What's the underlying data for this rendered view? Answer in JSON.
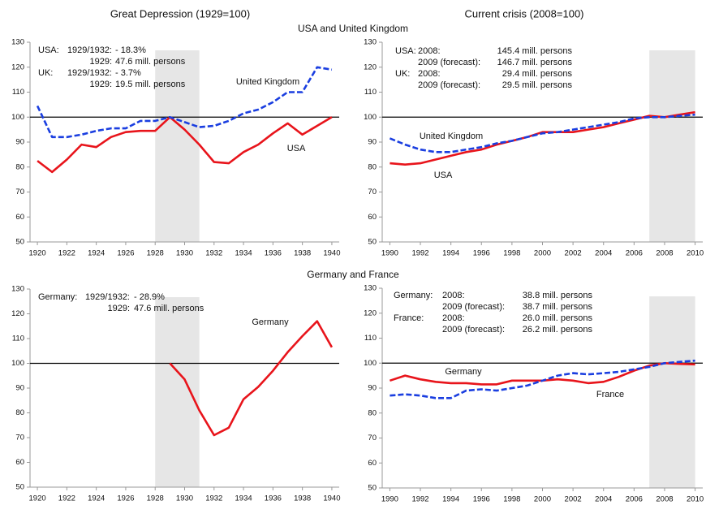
{
  "headings": {
    "left": "Great Depression (1929=100)",
    "right": "Current crisis (2008=100)",
    "sections": [
      "USA and United Kingdom",
      "Germany and France"
    ]
  },
  "chart_data": [
    {
      "type": "line",
      "x": [
        1920,
        1921,
        1922,
        1923,
        1924,
        1925,
        1926,
        1927,
        1928,
        1929,
        1930,
        1931,
        1932,
        1933,
        1934,
        1935,
        1936,
        1937,
        1938,
        1939,
        1940
      ],
      "series": [
        {
          "name": "USA",
          "color": "#e8141b",
          "dashed": false,
          "values": [
            82.5,
            78,
            83,
            89,
            88,
            92,
            94,
            94.5,
            94.5,
            100,
            95,
            89,
            82,
            81.5,
            86,
            89,
            93.5,
            97.5,
            93,
            96.5,
            100
          ]
        },
        {
          "name": "United Kingdom",
          "color": "#1a3ee0",
          "dashed": true,
          "values": [
            104.5,
            92,
            92,
            93,
            94.5,
            95.5,
            95.5,
            98.5,
            98.5,
            100,
            98,
            96,
            96.5,
            98.5,
            101.5,
            103,
            106,
            110,
            110,
            120,
            119
          ]
        }
      ],
      "xlim": [
        1919.5,
        1940.5
      ],
      "xticks": [
        1920,
        1922,
        1924,
        1926,
        1928,
        1930,
        1932,
        1934,
        1936,
        1938,
        1940
      ],
      "ylim": [
        50,
        130
      ],
      "yticks": [
        50,
        60,
        70,
        80,
        90,
        100,
        110,
        120,
        130
      ],
      "highlight_x": [
        1928,
        1931
      ],
      "reference_y": 100,
      "annotations": [
        {
          "country": "USA:",
          "period": "1929/1932:",
          "value": "- 18.3%"
        },
        {
          "period": "1929:",
          "value": "47.6 mill. persons"
        },
        {
          "country": "UK:",
          "period": "1929/1932:",
          "value": "- 3.7%"
        },
        {
          "period": "1929:",
          "value": "19.5 mill. persons"
        }
      ]
    },
    {
      "type": "line",
      "x": [
        1990,
        1991,
        1992,
        1993,
        1994,
        1995,
        1996,
        1997,
        1998,
        1999,
        2000,
        2001,
        2002,
        2003,
        2004,
        2005,
        2006,
        2007,
        2008,
        2009,
        2010
      ],
      "series": [
        {
          "name": "USA",
          "color": "#e8141b",
          "dashed": false,
          "values": [
            81.5,
            81,
            81.5,
            83,
            84.5,
            86,
            87,
            89,
            90.5,
            92,
            94,
            94,
            94,
            95,
            96,
            97.5,
            99,
            100.5,
            100,
            101,
            102
          ]
        },
        {
          "name": "United Kingdom",
          "color": "#1a3ee0",
          "dashed": true,
          "values": [
            91.5,
            89,
            87,
            86,
            86,
            87,
            88,
            89.5,
            90.5,
            92,
            93.5,
            94,
            95,
            96,
            97,
            98,
            99.5,
            100,
            100,
            100.5,
            101
          ]
        }
      ],
      "xlim": [
        1989.5,
        2010.5
      ],
      "xticks": [
        1990,
        1992,
        1994,
        1996,
        1998,
        2000,
        2002,
        2004,
        2006,
        2008,
        2010
      ],
      "ylim": [
        50,
        130
      ],
      "yticks": [
        50,
        60,
        70,
        80,
        90,
        100,
        110,
        120,
        130
      ],
      "highlight_x": [
        2007,
        2010
      ],
      "reference_y": 100,
      "annotations": [
        {
          "country": "USA:",
          "period": "2008:",
          "value": "145.4 mill. persons"
        },
        {
          "period": "2009 (forecast):",
          "value": "146.7 mill. persons"
        },
        {
          "country": "UK:",
          "period": "2008:",
          "value": "29.4 mill. persons"
        },
        {
          "period": "2009 (forecast):",
          "value": "29.5 mill. persons"
        }
      ]
    },
    {
      "type": "line",
      "x": [
        1929,
        1930,
        1931,
        1932,
        1933,
        1934,
        1935,
        1936,
        1937,
        1938,
        1939,
        1940
      ],
      "series": [
        {
          "name": "Germany",
          "color": "#e8141b",
          "dashed": false,
          "values": [
            100,
            93.5,
            81,
            71,
            74,
            85.5,
            90.5,
            97,
            104.5,
            111,
            117,
            106.5
          ]
        }
      ],
      "xlim": [
        1919.5,
        1940.5
      ],
      "xticks": [
        1920,
        1922,
        1924,
        1926,
        1928,
        1930,
        1932,
        1934,
        1936,
        1938,
        1940
      ],
      "ylim": [
        50,
        130
      ],
      "yticks": [
        50,
        60,
        70,
        80,
        90,
        100,
        110,
        120,
        130
      ],
      "highlight_x": [
        1928,
        1931
      ],
      "reference_y": 100,
      "annotations": [
        {
          "country": "Germany:",
          "period": "1929/1932:",
          "value": "- 28.9%"
        },
        {
          "period": "1929:",
          "value": "47.6 mill. persons"
        }
      ]
    },
    {
      "type": "line",
      "x": [
        1990,
        1991,
        1992,
        1993,
        1994,
        1995,
        1996,
        1997,
        1998,
        1999,
        2000,
        2001,
        2002,
        2003,
        2004,
        2005,
        2006,
        2007,
        2008,
        2009,
        2010
      ],
      "series": [
        {
          "name": "Germany",
          "color": "#e8141b",
          "dashed": false,
          "values": [
            93,
            95,
            93.5,
            92.5,
            92,
            92,
            91.5,
            91.5,
            93,
            93,
            93,
            93.5,
            93,
            92,
            92.5,
            94.5,
            97,
            99,
            100,
            99.7,
            99.5
          ]
        },
        {
          "name": "France",
          "color": "#1a3ee0",
          "dashed": true,
          "values": [
            87,
            87.5,
            87,
            86,
            86,
            89,
            89.5,
            89,
            90,
            91,
            93,
            95,
            96,
            95.5,
            96,
            96.5,
            97.5,
            98.5,
            100,
            100.5,
            101
          ]
        }
      ],
      "xlim": [
        1989.5,
        2010.5
      ],
      "xticks": [
        1990,
        1992,
        1994,
        1996,
        1998,
        2000,
        2002,
        2004,
        2006,
        2008,
        2010
      ],
      "ylim": [
        50,
        130
      ],
      "yticks": [
        50,
        60,
        70,
        80,
        90,
        100,
        110,
        120,
        130
      ],
      "highlight_x": [
        2007,
        2010
      ],
      "reference_y": 100,
      "annotations": [
        {
          "country": "Germany:",
          "period": "2008:",
          "value": "38.8 mill. persons"
        },
        {
          "period": "2009 (forecast):",
          "value": "38.7 mill. persons"
        },
        {
          "country": "France:",
          "period": "2008:",
          "value": "26.0 mill. persons"
        },
        {
          "period": "2009 (forecast):",
          "value": "26.2 mill. persons"
        }
      ]
    }
  ]
}
